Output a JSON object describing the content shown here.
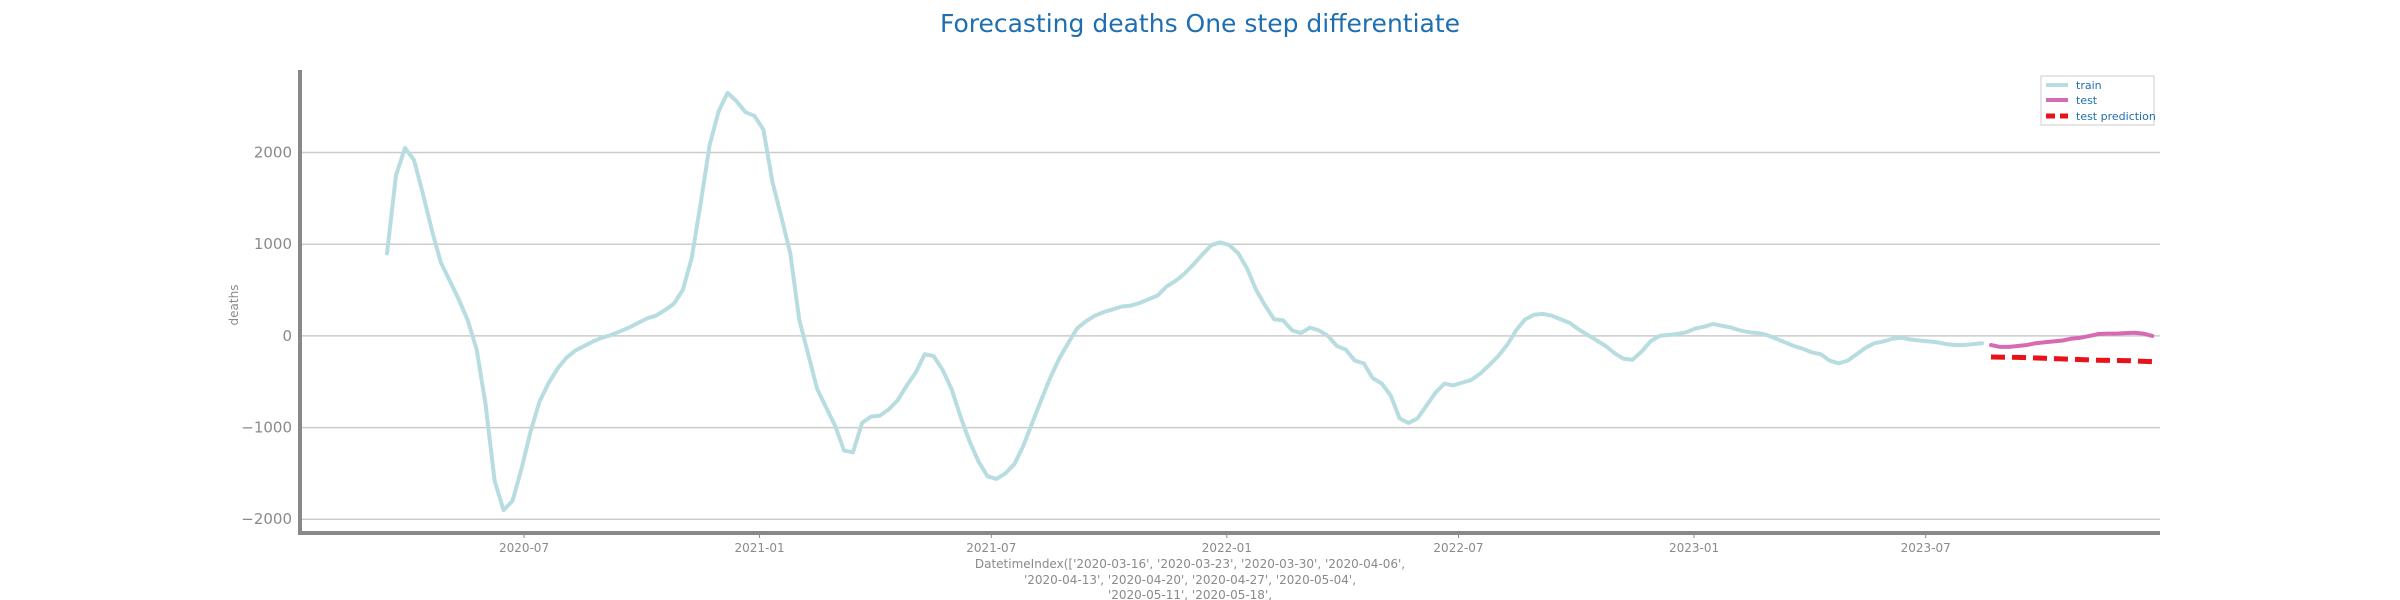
{
  "chart_data": {
    "type": "line",
    "title": "Forecasting deaths One step differentiate",
    "ylabel": "deaths",
    "xlabel_lines": [
      "DatetimeIndex(['2020-03-16', '2020-03-23', '2020-03-30', '2020-04-06',",
      "'2020-04-13', '2020-04-20', '2020-04-27', '2020-05-04',",
      "'2020-05-11', '2020-05-18',"
    ],
    "ylim": [
      -2150,
      2900
    ],
    "xlim": [
      "2020-01-08",
      "2023-12-31"
    ],
    "y_ticks": [
      -2000,
      -1000,
      0,
      1000,
      2000
    ],
    "y_tick_labels": [
      "−2000",
      "−1000",
      "0",
      "1000",
      "2000"
    ],
    "x_ticks": [
      "2020-07-01",
      "2021-01-01",
      "2021-07-01",
      "2022-01-01",
      "2022-07-01",
      "2023-01-01",
      "2023-07-01"
    ],
    "x_tick_labels": [
      "2020-07",
      "2021-01",
      "2021-07",
      "2022-01",
      "2022-07",
      "2023-01",
      "2023-07"
    ],
    "grid": "horizontal",
    "legend_position": "top-right",
    "legend": [
      {
        "label": "train",
        "color": "#b8dde0",
        "style": "solid"
      },
      {
        "label": "test",
        "color": "#d66bb3",
        "style": "solid"
      },
      {
        "label": "test prediction",
        "color": "#e8121b",
        "style": "dashed"
      }
    ],
    "series": [
      {
        "name": "train",
        "color": "#b8dde0",
        "points": [
          [
            "2020-03-16",
            900
          ],
          [
            "2020-03-23",
            1750
          ],
          [
            "2020-03-30",
            2050
          ],
          [
            "2020-04-06",
            1920
          ],
          [
            "2020-04-13",
            1550
          ],
          [
            "2020-04-20",
            1150
          ],
          [
            "2020-04-27",
            800
          ],
          [
            "2020-05-04",
            600
          ],
          [
            "2020-05-11",
            400
          ],
          [
            "2020-05-18",
            170
          ],
          [
            "2020-05-25",
            -150
          ],
          [
            "2020-06-01",
            -750
          ],
          [
            "2020-06-08",
            -1580
          ],
          [
            "2020-06-15",
            -1900
          ],
          [
            "2020-06-22",
            -1800
          ],
          [
            "2020-06-29",
            -1450
          ],
          [
            "2020-07-06",
            -1050
          ],
          [
            "2020-07-13",
            -720
          ],
          [
            "2020-07-20",
            -520
          ],
          [
            "2020-07-27",
            -360
          ],
          [
            "2020-08-03",
            -240
          ],
          [
            "2020-08-10",
            -160
          ],
          [
            "2020-08-17",
            -110
          ],
          [
            "2020-08-24",
            -60
          ],
          [
            "2020-08-31",
            -20
          ],
          [
            "2020-09-07",
            10
          ],
          [
            "2020-09-14",
            50
          ],
          [
            "2020-09-21",
            90
          ],
          [
            "2020-09-28",
            140
          ],
          [
            "2020-10-05",
            190
          ],
          [
            "2020-10-12",
            220
          ],
          [
            "2020-10-19",
            280
          ],
          [
            "2020-10-26",
            350
          ],
          [
            "2020-11-02",
            500
          ],
          [
            "2020-11-09",
            850
          ],
          [
            "2020-11-16",
            1450
          ],
          [
            "2020-11-23",
            2080
          ],
          [
            "2020-11-30",
            2450
          ],
          [
            "2020-12-07",
            2650
          ],
          [
            "2020-12-14",
            2560
          ],
          [
            "2020-12-21",
            2440
          ],
          [
            "2020-12-28",
            2400
          ],
          [
            "2021-01-04",
            2250
          ],
          [
            "2021-01-11",
            1680
          ],
          [
            "2021-01-18",
            1300
          ],
          [
            "2021-01-25",
            900
          ],
          [
            "2021-02-01",
            180
          ],
          [
            "2021-02-08",
            -200
          ],
          [
            "2021-02-15",
            -580
          ],
          [
            "2021-02-22",
            -780
          ],
          [
            "2021-03-01",
            -980
          ],
          [
            "2021-03-08",
            -1250
          ],
          [
            "2021-03-15",
            -1270
          ],
          [
            "2021-03-22",
            -950
          ],
          [
            "2021-03-29",
            -880
          ],
          [
            "2021-04-05",
            -870
          ],
          [
            "2021-04-12",
            -800
          ],
          [
            "2021-04-19",
            -700
          ],
          [
            "2021-04-26",
            -540
          ],
          [
            "2021-05-03",
            -400
          ],
          [
            "2021-05-10",
            -200
          ],
          [
            "2021-05-17",
            -220
          ],
          [
            "2021-05-24",
            -370
          ],
          [
            "2021-05-31",
            -580
          ],
          [
            "2021-06-07",
            -880
          ],
          [
            "2021-06-14",
            -1150
          ],
          [
            "2021-06-21",
            -1370
          ],
          [
            "2021-06-28",
            -1530
          ],
          [
            "2021-07-05",
            -1560
          ],
          [
            "2021-07-12",
            -1500
          ],
          [
            "2021-07-19",
            -1400
          ],
          [
            "2021-07-26",
            -1200
          ],
          [
            "2021-08-02",
            -950
          ],
          [
            "2021-08-09",
            -700
          ],
          [
            "2021-08-16",
            -460
          ],
          [
            "2021-08-23",
            -250
          ],
          [
            "2021-08-30",
            -80
          ],
          [
            "2021-09-06",
            80
          ],
          [
            "2021-09-13",
            160
          ],
          [
            "2021-09-20",
            220
          ],
          [
            "2021-09-27",
            260
          ],
          [
            "2021-10-04",
            290
          ],
          [
            "2021-10-11",
            320
          ],
          [
            "2021-10-18",
            330
          ],
          [
            "2021-10-25",
            360
          ],
          [
            "2021-11-01",
            400
          ],
          [
            "2021-11-08",
            440
          ],
          [
            "2021-11-15",
            540
          ],
          [
            "2021-11-22",
            600
          ],
          [
            "2021-11-29",
            680
          ],
          [
            "2021-12-06",
            780
          ],
          [
            "2021-12-13",
            890
          ],
          [
            "2021-12-20",
            990
          ],
          [
            "2021-12-27",
            1020
          ],
          [
            "2022-01-03",
            990
          ],
          [
            "2022-01-10",
            900
          ],
          [
            "2022-01-17",
            730
          ],
          [
            "2022-01-24",
            500
          ],
          [
            "2022-01-31",
            330
          ],
          [
            "2022-02-07",
            180
          ],
          [
            "2022-02-14",
            170
          ],
          [
            "2022-02-21",
            60
          ],
          [
            "2022-02-28",
            30
          ],
          [
            "2022-03-07",
            90
          ],
          [
            "2022-03-14",
            60
          ],
          [
            "2022-03-21",
            0
          ],
          [
            "2022-03-28",
            -110
          ],
          [
            "2022-04-04",
            -150
          ],
          [
            "2022-04-11",
            -270
          ],
          [
            "2022-04-18",
            -300
          ],
          [
            "2022-04-25",
            -460
          ],
          [
            "2022-05-02",
            -520
          ],
          [
            "2022-05-09",
            -650
          ],
          [
            "2022-05-16",
            -900
          ],
          [
            "2022-05-23",
            -950
          ],
          [
            "2022-05-30",
            -900
          ],
          [
            "2022-06-06",
            -760
          ],
          [
            "2022-06-13",
            -620
          ],
          [
            "2022-06-20",
            -520
          ],
          [
            "2022-06-27",
            -540
          ],
          [
            "2022-07-04",
            -510
          ],
          [
            "2022-07-11",
            -480
          ],
          [
            "2022-07-18",
            -410
          ],
          [
            "2022-07-25",
            -320
          ],
          [
            "2022-08-01",
            -220
          ],
          [
            "2022-08-08",
            -100
          ],
          [
            "2022-08-15",
            60
          ],
          [
            "2022-08-22",
            180
          ],
          [
            "2022-08-29",
            230
          ],
          [
            "2022-09-05",
            240
          ],
          [
            "2022-09-12",
            220
          ],
          [
            "2022-09-19",
            180
          ],
          [
            "2022-09-26",
            140
          ],
          [
            "2022-10-03",
            70
          ],
          [
            "2022-10-10",
            10
          ],
          [
            "2022-10-17",
            -50
          ],
          [
            "2022-10-24",
            -110
          ],
          [
            "2022-10-31",
            -190
          ],
          [
            "2022-11-07",
            -250
          ],
          [
            "2022-11-14",
            -260
          ],
          [
            "2022-11-21",
            -170
          ],
          [
            "2022-11-28",
            -60
          ],
          [
            "2022-12-05",
            0
          ],
          [
            "2022-12-12",
            10
          ],
          [
            "2022-12-19",
            20
          ],
          [
            "2022-12-26",
            40
          ],
          [
            "2023-01-02",
            80
          ],
          [
            "2023-01-09",
            100
          ],
          [
            "2023-01-16",
            130
          ],
          [
            "2023-01-23",
            110
          ],
          [
            "2023-01-30",
            90
          ],
          [
            "2023-02-06",
            60
          ],
          [
            "2023-02-13",
            40
          ],
          [
            "2023-02-20",
            30
          ],
          [
            "2023-02-27",
            10
          ],
          [
            "2023-03-06",
            -30
          ],
          [
            "2023-03-13",
            -70
          ],
          [
            "2023-03-20",
            -110
          ],
          [
            "2023-03-27",
            -140
          ],
          [
            "2023-04-03",
            -180
          ],
          [
            "2023-04-10",
            -200
          ],
          [
            "2023-04-17",
            -270
          ],
          [
            "2023-04-24",
            -300
          ],
          [
            "2023-05-01",
            -270
          ],
          [
            "2023-05-08",
            -200
          ],
          [
            "2023-05-15",
            -130
          ],
          [
            "2023-05-22",
            -80
          ],
          [
            "2023-05-29",
            -60
          ],
          [
            "2023-06-05",
            -30
          ],
          [
            "2023-06-12",
            -20
          ],
          [
            "2023-06-19",
            -40
          ],
          [
            "2023-06-26",
            -50
          ],
          [
            "2023-07-03",
            -60
          ],
          [
            "2023-07-10",
            -70
          ],
          [
            "2023-07-17",
            -90
          ],
          [
            "2023-07-24",
            -100
          ],
          [
            "2023-07-31",
            -100
          ],
          [
            "2023-08-07",
            -90
          ],
          [
            "2023-08-14",
            -80
          ]
        ]
      },
      {
        "name": "test",
        "color": "#d66bb3",
        "points": [
          [
            "2023-08-21",
            -100
          ],
          [
            "2023-08-28",
            -120
          ],
          [
            "2023-09-04",
            -120
          ],
          [
            "2023-09-11",
            -110
          ],
          [
            "2023-09-18",
            -100
          ],
          [
            "2023-09-25",
            -80
          ],
          [
            "2023-10-02",
            -70
          ],
          [
            "2023-10-09",
            -60
          ],
          [
            "2023-10-16",
            -50
          ],
          [
            "2023-10-23",
            -30
          ],
          [
            "2023-10-30",
            -20
          ],
          [
            "2023-11-06",
            0
          ],
          [
            "2023-11-13",
            20
          ],
          [
            "2023-11-20",
            25
          ],
          [
            "2023-11-27",
            25
          ],
          [
            "2023-12-04",
            30
          ],
          [
            "2023-12-11",
            35
          ],
          [
            "2023-12-18",
            25
          ],
          [
            "2023-12-25",
            0
          ]
        ]
      },
      {
        "name": "test prediction",
        "color": "#e8121b",
        "dashed": true,
        "points": [
          [
            "2023-08-21",
            -230
          ],
          [
            "2023-09-11",
            -235
          ],
          [
            "2023-10-02",
            -245
          ],
          [
            "2023-10-23",
            -255
          ],
          [
            "2023-11-13",
            -265
          ],
          [
            "2023-12-04",
            -270
          ],
          [
            "2023-12-25",
            -280
          ]
        ]
      }
    ]
  }
}
